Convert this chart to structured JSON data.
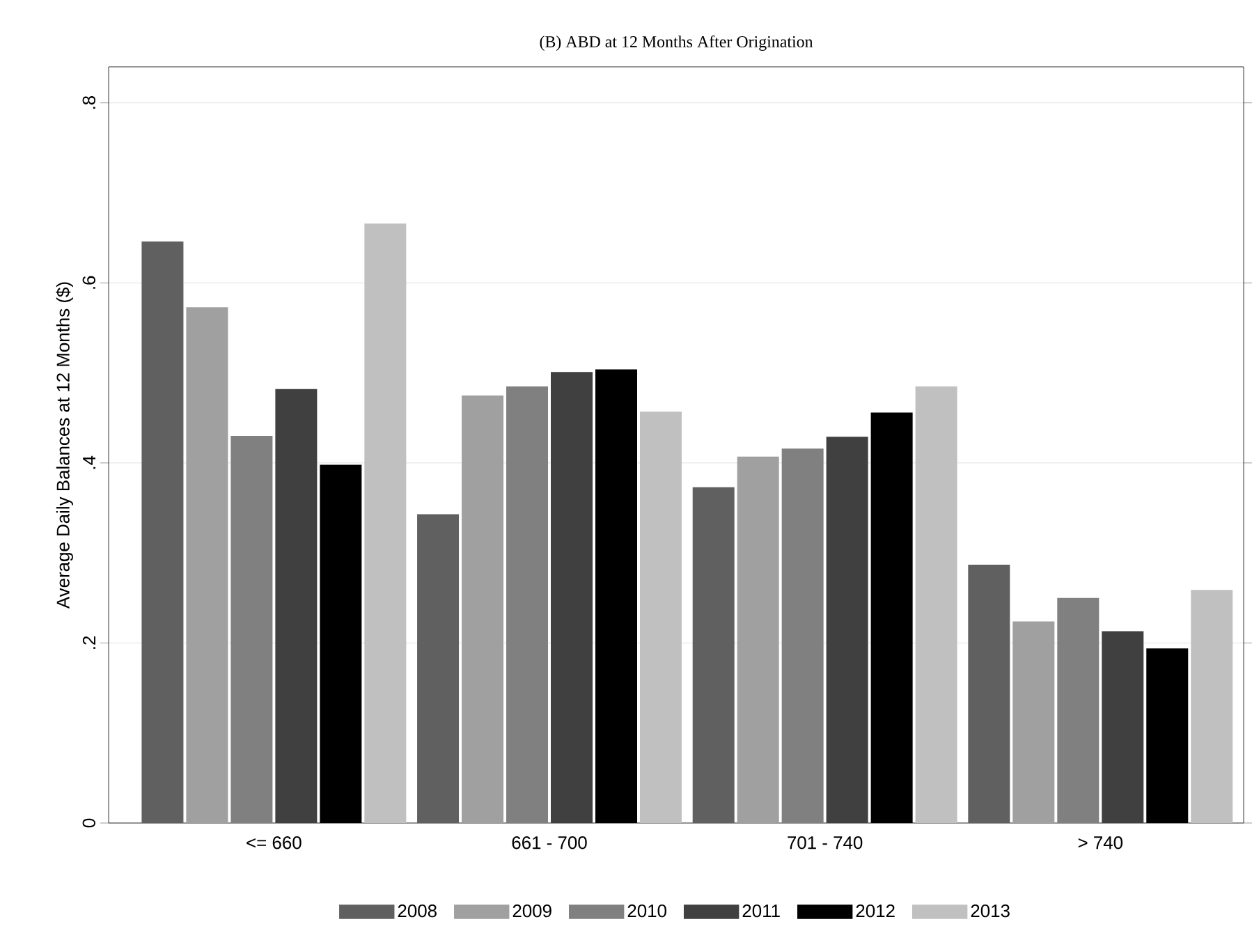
{
  "chart_data": {
    "type": "bar",
    "title": "(B)  ABD at 12 Months After Origination",
    "ylabel": "Average Daily Balances at 12 Months ($)",
    "categories": [
      "<= 660",
      "661 - 700",
      "701 - 740",
      "> 740"
    ],
    "series": [
      {
        "name": "2008",
        "color": "#606060",
        "values": [
          0.646,
          0.343,
          0.373,
          0.287
        ]
      },
      {
        "name": "2009",
        "color": "#a0a0a0",
        "values": [
          0.573,
          0.475,
          0.407,
          0.224
        ]
      },
      {
        "name": "2010",
        "color": "#808080",
        "values": [
          0.43,
          0.485,
          0.416,
          0.25
        ]
      },
      {
        "name": "2011",
        "color": "#404040",
        "values": [
          0.482,
          0.501,
          0.429,
          0.213
        ]
      },
      {
        "name": "2012",
        "color": "#000000",
        "values": [
          0.398,
          0.504,
          0.456,
          0.194
        ]
      },
      {
        "name": "2013",
        "color": "#c0c0c0",
        "values": [
          0.666,
          0.457,
          0.485,
          0.259
        ]
      }
    ],
    "ylim": [
      0,
      0.84
    ],
    "yticks": [
      0,
      {
        "value": 0.2,
        "label": ".2"
      },
      {
        "value": 0.4,
        "label": ".4"
      },
      {
        "value": 0.6,
        "label": ".6"
      },
      {
        "value": 0.8,
        "label": ".8"
      }
    ],
    "grid": "y",
    "legend": "bottom"
  }
}
